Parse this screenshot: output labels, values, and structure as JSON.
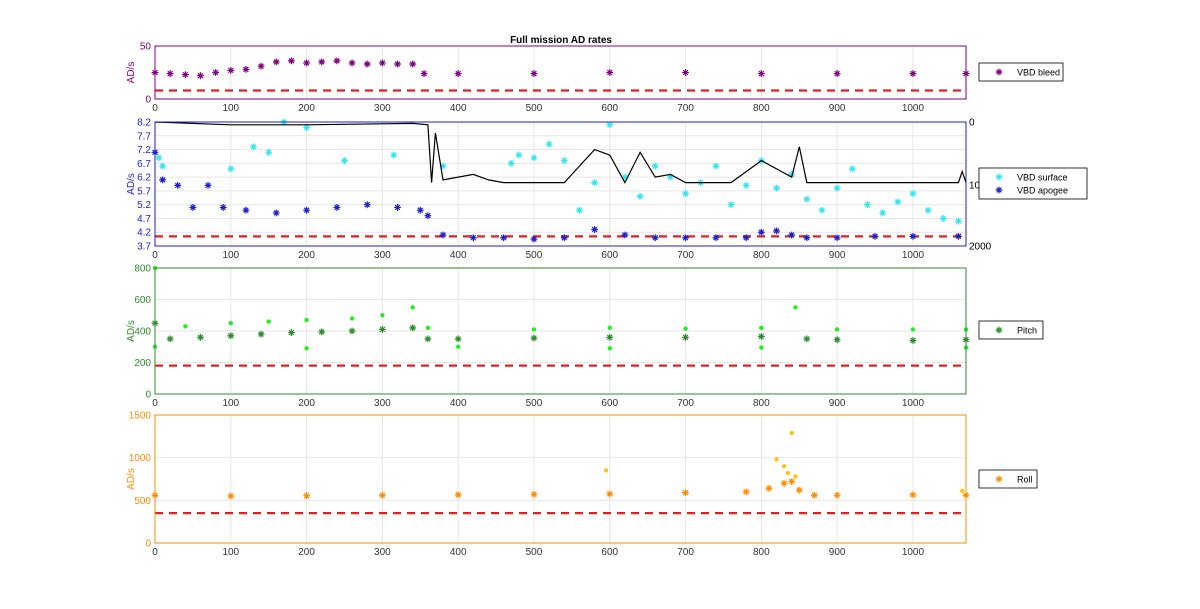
{
  "colors": {
    "bleed": "#800080",
    "surface": "#33e5f2",
    "apogee": "#1f1fc9",
    "vbd_line": "#000000",
    "pitch_light": "#22ee22",
    "pitch_dark": "#2e8b2e",
    "roll_light": "#ffc21a",
    "roll_dark": "#ff8c00",
    "threshold": "#e02020",
    "grid": "#e6e6e6"
  },
  "chart_data": [
    {
      "type": "scatter",
      "title": "Full mission AD rates",
      "ylabel": "AD/s",
      "xlim": [
        0,
        1070
      ],
      "ylim": [
        0,
        50
      ],
      "x_ticks": [
        "0",
        "100",
        "200",
        "300",
        "400",
        "500",
        "600",
        "700",
        "800",
        "900",
        "1000"
      ],
      "y_ticks": [
        "0",
        "50"
      ],
      "threshold": 8,
      "legend": [
        "VBD bleed"
      ],
      "legend_location": "outside-right",
      "grid": true,
      "series": [
        {
          "name": "VBD bleed",
          "marker": "*",
          "points": [
            [
              0,
              25
            ],
            [
              20,
              24
            ],
            [
              40,
              23
            ],
            [
              60,
              22
            ],
            [
              80,
              25
            ],
            [
              100,
              27
            ],
            [
              120,
              28
            ],
            [
              140,
              31
            ],
            [
              160,
              35
            ],
            [
              180,
              36
            ],
            [
              200,
              34
            ],
            [
              220,
              35
            ],
            [
              240,
              36
            ],
            [
              260,
              34
            ],
            [
              280,
              33
            ],
            [
              300,
              34
            ],
            [
              320,
              33
            ],
            [
              340,
              33
            ],
            [
              355,
              24
            ],
            [
              400,
              24
            ],
            [
              500,
              24
            ],
            [
              600,
              25
            ],
            [
              700,
              25
            ],
            [
              800,
              24
            ],
            [
              900,
              24
            ],
            [
              1000,
              24
            ],
            [
              1070,
              24
            ]
          ]
        }
      ]
    },
    {
      "type": "scatter",
      "ylabel": "AD/s",
      "xlim": [
        0,
        1070
      ],
      "ylim": [
        3.7,
        8.2
      ],
      "x_ticks": [
        "0",
        "100",
        "200",
        "300",
        "400",
        "500",
        "600",
        "700",
        "800",
        "900",
        "1000"
      ],
      "y_ticks": [
        "3.7",
        "4.2",
        "4.7",
        "5.2",
        "5.7",
        "6.2",
        "6.7",
        "7.2",
        "7.7",
        "8.2"
      ],
      "y2_ticks": [
        "0",
        "10",
        "2000"
      ],
      "threshold": 4.05,
      "legend": [
        "VBD surface",
        "VBD apogee"
      ],
      "legend_location": "outside-right",
      "grid": true,
      "series": [
        {
          "name": "VBD surface",
          "marker": "*",
          "points": [
            [
              5,
              6.9
            ],
            [
              10,
              6.6
            ],
            [
              100,
              6.5
            ],
            [
              130,
              7.3
            ],
            [
              150,
              7.1
            ],
            [
              170,
              8.2
            ],
            [
              200,
              8.0
            ],
            [
              250,
              6.8
            ],
            [
              315,
              7.0
            ],
            [
              380,
              6.6
            ],
            [
              470,
              6.7
            ],
            [
              480,
              7.0
            ],
            [
              500,
              6.9
            ],
            [
              520,
              7.4
            ],
            [
              540,
              6.8
            ],
            [
              560,
              5.0
            ],
            [
              580,
              6.0
            ],
            [
              600,
              8.1
            ],
            [
              620,
              6.2
            ],
            [
              640,
              5.5
            ],
            [
              660,
              6.6
            ],
            [
              680,
              6.2
            ],
            [
              700,
              5.6
            ],
            [
              720,
              6.0
            ],
            [
              740,
              6.6
            ],
            [
              760,
              5.2
            ],
            [
              780,
              5.9
            ],
            [
              800,
              6.8
            ],
            [
              820,
              5.8
            ],
            [
              840,
              6.3
            ],
            [
              860,
              5.4
            ],
            [
              880,
              5.0
            ],
            [
              900,
              5.8
            ],
            [
              920,
              6.5
            ],
            [
              940,
              5.2
            ],
            [
              960,
              4.9
            ],
            [
              980,
              5.3
            ],
            [
              1000,
              5.6
            ],
            [
              1020,
              5.0
            ],
            [
              1040,
              4.7
            ],
            [
              1060,
              4.6
            ]
          ]
        },
        {
          "name": "VBD apogee",
          "marker": "*",
          "points": [
            [
              0,
              7.1
            ],
            [
              10,
              6.1
            ],
            [
              30,
              5.9
            ],
            [
              50,
              5.1
            ],
            [
              70,
              5.9
            ],
            [
              90,
              5.1
            ],
            [
              120,
              5.0
            ],
            [
              160,
              4.9
            ],
            [
              200,
              5.0
            ],
            [
              240,
              5.1
            ],
            [
              280,
              5.2
            ],
            [
              320,
              5.1
            ],
            [
              350,
              5.0
            ],
            [
              360,
              4.8
            ],
            [
              380,
              4.1
            ],
            [
              420,
              4.0
            ],
            [
              460,
              4.0
            ],
            [
              500,
              3.95
            ],
            [
              540,
              4.0
            ],
            [
              580,
              4.3
            ],
            [
              620,
              4.1
            ],
            [
              660,
              4.0
            ],
            [
              700,
              4.0
            ],
            [
              740,
              4.0
            ],
            [
              780,
              4.0
            ],
            [
              800,
              4.2
            ],
            [
              820,
              4.25
            ],
            [
              840,
              4.1
            ],
            [
              860,
              4.0
            ],
            [
              900,
              4.0
            ],
            [
              950,
              4.05
            ],
            [
              1000,
              4.05
            ],
            [
              1060,
              4.05
            ]
          ]
        },
        {
          "name": "",
          "line": true,
          "axis": "right",
          "points": [
            [
              0,
              8.2
            ],
            [
              100,
              8.1
            ],
            [
              200,
              8.1
            ],
            [
              340,
              8.15
            ],
            [
              360,
              8.1
            ],
            [
              365,
              6.0
            ],
            [
              370,
              7.8
            ],
            [
              380,
              6.1
            ],
            [
              400,
              6.2
            ],
            [
              420,
              6.3
            ],
            [
              440,
              6.1
            ],
            [
              460,
              6.0
            ],
            [
              500,
              6.0
            ],
            [
              540,
              6.0
            ],
            [
              560,
              6.6
            ],
            [
              580,
              7.2
            ],
            [
              600,
              7.0
            ],
            [
              620,
              6.0
            ],
            [
              640,
              7.1
            ],
            [
              660,
              6.2
            ],
            [
              680,
              6.3
            ],
            [
              700,
              6.0
            ],
            [
              760,
              6.0
            ],
            [
              800,
              6.8
            ],
            [
              840,
              6.2
            ],
            [
              850,
              7.3
            ],
            [
              860,
              6.0
            ],
            [
              1060,
              6.0
            ],
            [
              1065,
              6.4
            ],
            [
              1070,
              6.0
            ]
          ]
        }
      ]
    },
    {
      "type": "scatter",
      "ylabel": "AD/s",
      "xlim": [
        0,
        1070
      ],
      "ylim": [
        0,
        800
      ],
      "x_ticks": [
        "0",
        "100",
        "200",
        "300",
        "400",
        "500",
        "600",
        "700",
        "800",
        "900",
        "1000"
      ],
      "y_ticks": [
        "0",
        "200",
        "400",
        "600",
        "800"
      ],
      "threshold": 180,
      "legend": [
        "Pitch"
      ],
      "legend_location": "outside-right",
      "grid": true,
      "series": [
        {
          "name": "Pitch",
          "marker": "*",
          "points": [
            [
              0,
              450
            ],
            [
              20,
              350
            ],
            [
              60,
              360
            ],
            [
              100,
              370
            ],
            [
              140,
              380
            ],
            [
              180,
              390
            ],
            [
              220,
              395
            ],
            [
              260,
              400
            ],
            [
              300,
              410
            ],
            [
              340,
              420
            ],
            [
              360,
              350
            ],
            [
              400,
              350
            ],
            [
              500,
              355
            ],
            [
              600,
              360
            ],
            [
              700,
              360
            ],
            [
              800,
              365
            ],
            [
              860,
              350
            ],
            [
              900,
              345
            ],
            [
              1000,
              340
            ],
            [
              1070,
              345
            ]
          ]
        },
        {
          "name": "",
          "marker": ".",
          "points": [
            [
              0,
              800
            ],
            [
              40,
              430
            ],
            [
              100,
              450
            ],
            [
              150,
              460
            ],
            [
              200,
              470
            ],
            [
              260,
              480
            ],
            [
              300,
              500
            ],
            [
              340,
              550
            ],
            [
              360,
              420
            ],
            [
              500,
              410
            ],
            [
              600,
              420
            ],
            [
              700,
              415
            ],
            [
              800,
              420
            ],
            [
              845,
              550
            ],
            [
              900,
              410
            ],
            [
              1000,
              410
            ],
            [
              1070,
              410
            ],
            [
              0,
              300
            ],
            [
              200,
              290
            ],
            [
              400,
              300
            ],
            [
              600,
              290
            ],
            [
              800,
              295
            ],
            [
              1070,
              295
            ]
          ]
        }
      ]
    },
    {
      "type": "scatter",
      "ylabel": "AD/s",
      "xlim": [
        0,
        1070
      ],
      "ylim": [
        0,
        1500
      ],
      "x_ticks": [
        "0",
        "100",
        "200",
        "300",
        "400",
        "500",
        "600",
        "700",
        "800",
        "900",
        "1000"
      ],
      "y_ticks": [
        "0",
        "500",
        "1000",
        "1500"
      ],
      "threshold": 350,
      "legend": [
        "Roll"
      ],
      "legend_location": "outside-right",
      "grid": true,
      "series": [
        {
          "name": "Roll",
          "marker": "*",
          "points": [
            [
              0,
              560
            ],
            [
              100,
              550
            ],
            [
              200,
              555
            ],
            [
              300,
              560
            ],
            [
              400,
              565
            ],
            [
              500,
              570
            ],
            [
              600,
              575
            ],
            [
              700,
              590
            ],
            [
              780,
              600
            ],
            [
              810,
              640
            ],
            [
              830,
              700
            ],
            [
              840,
              720
            ],
            [
              850,
              620
            ],
            [
              870,
              560
            ],
            [
              900,
              560
            ],
            [
              1000,
              565
            ],
            [
              1070,
              560
            ]
          ]
        },
        {
          "name": "",
          "marker": ".",
          "points": [
            [
              595,
              850
            ],
            [
              820,
              980
            ],
            [
              830,
              900
            ],
            [
              840,
              1290
            ],
            [
              835,
              820
            ],
            [
              845,
              780
            ],
            [
              1065,
              610
            ]
          ]
        }
      ]
    }
  ]
}
